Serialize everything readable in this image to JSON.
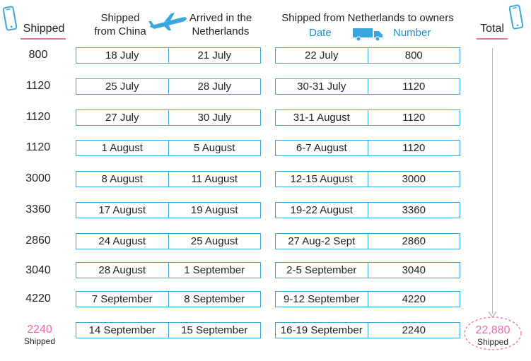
{
  "header": {
    "shipped": "Shipped",
    "shipped_from_china_line1": "Shipped",
    "shipped_from_china_line2": "from China",
    "arrived_line1": "Arrived in the",
    "arrived_line2": "Netherlands",
    "shipped_from_nl": "Shipped from Netherlands to owners",
    "date": "Date",
    "number": "Number",
    "total": "Total"
  },
  "rows": [
    {
      "shipped": "800",
      "from_china": "18 July",
      "arrived": "21 July",
      "date": "22 July",
      "number": "800"
    },
    {
      "shipped": "1120",
      "from_china": "25 July",
      "arrived": "28 July",
      "date": "30-31 July",
      "number": "1120"
    },
    {
      "shipped": "1120",
      "from_china": "27 July",
      "arrived": "30 July",
      "date": "31-1 August",
      "number": "1120"
    },
    {
      "shipped": "1120",
      "from_china": "1 August",
      "arrived": "5 August",
      "date": "6-7 August",
      "number": "1120"
    },
    {
      "shipped": "3000",
      "from_china": "8 August",
      "arrived": "11 August",
      "date": "12-15 August",
      "number": "3000"
    },
    {
      "shipped": "3360",
      "from_china": "17 August",
      "arrived": "19 August",
      "date": "19-22 August",
      "number": "3360"
    },
    {
      "shipped": "2860",
      "from_china": "24 August",
      "arrived": "25 August",
      "date": "27 Aug-2 Sept",
      "number": "2860"
    },
    {
      "shipped": "3040",
      "from_china": "28 August",
      "arrived": "1 September",
      "date": "2-5 September",
      "number": "3040"
    },
    {
      "shipped": "4220",
      "from_china": "7 September",
      "arrived": "8 September",
      "date": "9-12 September",
      "number": "4220"
    },
    {
      "shipped": "2240",
      "from_china": "14 September",
      "arrived": "15 September",
      "date": "16-19 September",
      "number": "2240",
      "shipped_sub": "Shipped"
    }
  ],
  "total": {
    "value": "22,880",
    "label": "Shipped"
  },
  "colors": {
    "accent_blue": "#3aa6de",
    "accent_pink": "#f06aa8"
  },
  "icons": [
    "phone-icon",
    "airplane-icon",
    "truck-icon",
    "phone-icon"
  ]
}
